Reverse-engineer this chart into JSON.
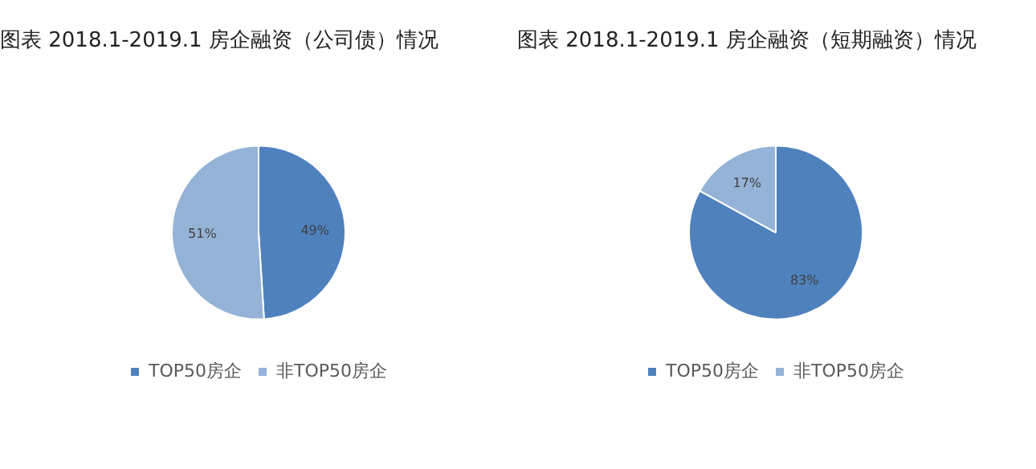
{
  "chart_data": [
    {
      "type": "pie",
      "title": "图表 2018.1-2019.1 房企融资（公司债）情况",
      "categories": [
        "TOP50房企",
        "非TOP50房企"
      ],
      "values": [
        49,
        51
      ],
      "value_labels": [
        "49%",
        "51%"
      ],
      "colors": [
        "#4f81bd",
        "#95b3d7"
      ],
      "legend": "bottom"
    },
    {
      "type": "pie",
      "title": "图表 2018.1-2019.1 房企融资（短期融资）情况",
      "categories": [
        "TOP50房企",
        "非TOP50房企"
      ],
      "values": [
        83,
        17
      ],
      "value_labels": [
        "83%",
        "17%"
      ],
      "colors": [
        "#4f81bd",
        "#95b3d7"
      ],
      "legend": "bottom"
    }
  ]
}
